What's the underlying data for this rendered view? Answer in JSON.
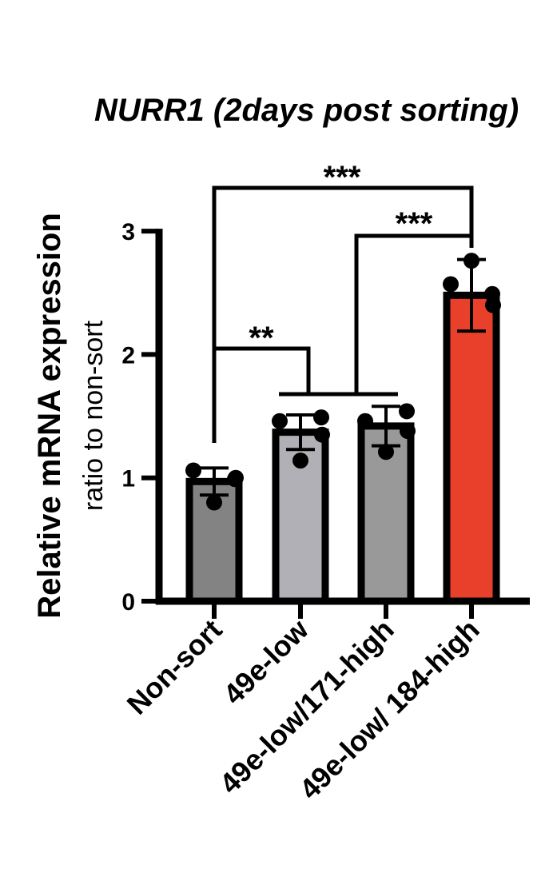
{
  "chart_data": {
    "type": "bar",
    "title": "NURR1 (2days post sorting)",
    "ylabel": "Relative mRNA expression",
    "ylabel_sub": "ratio to non-sort",
    "xlabel": "",
    "ylim": [
      0,
      3
    ],
    "yticks": [
      "0",
      "1",
      "2",
      "3"
    ],
    "categories": [
      "Non-sort",
      "49e-low",
      "49e-low/171-high",
      "49e-low/ 184-high"
    ],
    "values": [
      0.97,
      1.37,
      1.42,
      2.48
    ],
    "error": [
      0.11,
      0.14,
      0.16,
      0.29
    ],
    "points": [
      [
        1.06,
        0.8,
        0.99,
        1.0
      ],
      [
        1.46,
        1.14,
        1.49,
        1.35
      ],
      [
        1.46,
        1.21,
        1.54,
        1.38
      ],
      [
        2.57,
        2.76,
        2.49,
        2.4
      ]
    ],
    "colors": [
      "#838383",
      "#b0b0b6",
      "#999999",
      "#e8402a"
    ],
    "significance": [
      {
        "label": "***",
        "from": 0,
        "to": 3
      },
      {
        "label": "***",
        "from": 2,
        "to": 3
      },
      {
        "label": "**",
        "from": 0,
        "to": 1
      }
    ]
  }
}
